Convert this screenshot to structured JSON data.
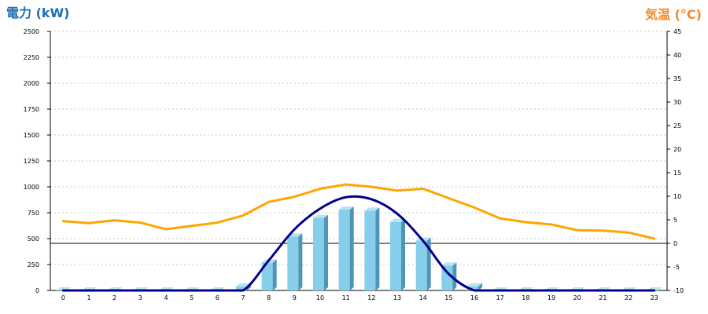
{
  "chart_data": {
    "type": "bar+line",
    "left_axis_title": "電力 (kW)",
    "right_axis_title": "気温 (°C)",
    "categories": [
      "0",
      "1",
      "2",
      "3",
      "4",
      "5",
      "6",
      "7",
      "8",
      "9",
      "10",
      "11",
      "12",
      "13",
      "14",
      "15",
      "16",
      "17",
      "18",
      "19",
      "20",
      "21",
      "22",
      "23"
    ],
    "left_ylim": [
      0,
      2500
    ],
    "left_ticks": [
      "0",
      "250",
      "500",
      "750",
      "1000",
      "1250",
      "1500",
      "1750",
      "2000",
      "2250",
      "2500"
    ],
    "right_ylim": [
      -10,
      45
    ],
    "right_ticks": [
      "-10",
      "-5",
      "0",
      "5",
      "10",
      "15",
      "20",
      "25",
      "30",
      "35",
      "40",
      "45"
    ],
    "grid": true,
    "series": [
      {
        "kind": "bar",
        "axis": "left",
        "values": [
          0,
          0,
          0,
          0,
          0,
          0,
          0,
          40,
          270,
          520,
          700,
          780,
          770,
          660,
          480,
          240,
          40,
          0,
          0,
          0,
          0,
          0,
          0,
          0
        ],
        "color": "#87ceeb",
        "side_color": "#4f95b8",
        "top_color": "#b8e2f2"
      },
      {
        "kind": "line",
        "axis": "left",
        "smooth": true,
        "values": [
          0,
          0,
          0,
          0,
          0,
          0,
          0,
          0,
          290,
          590,
          790,
          900,
          880,
          740,
          480,
          160,
          0,
          0,
          0,
          0,
          0,
          0,
          0,
          0
        ],
        "color": "#00008b"
      },
      {
        "kind": "line",
        "axis": "right",
        "values": [
          4.7,
          4.3,
          4.9,
          4.4,
          3.0,
          3.7,
          4.4,
          5.9,
          8.8,
          9.9,
          11.6,
          12.5,
          12.0,
          11.2,
          11.6,
          9.6,
          7.6,
          5.3,
          4.5,
          4.0,
          2.8,
          2.7,
          2.3,
          1.0
        ],
        "color": "#ffa500"
      }
    ],
    "reference_line": {
      "axis": "right",
      "value": 0,
      "color": "#000000"
    }
  }
}
